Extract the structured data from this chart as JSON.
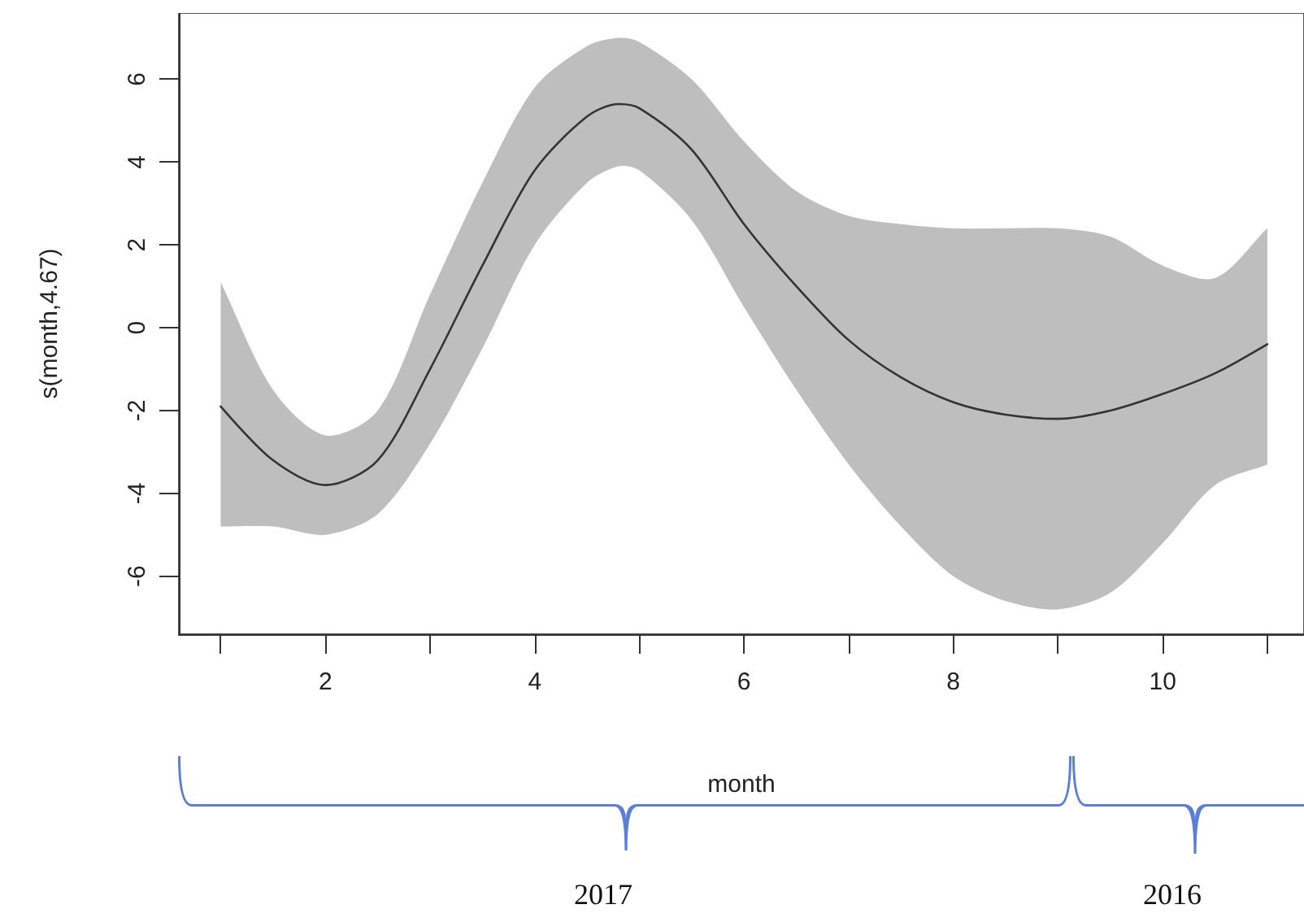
{
  "chart_data": {
    "type": "line",
    "xlabel": "month",
    "ylabel": "s(month,4.67)",
    "x": [
      1,
      1.5,
      2,
      2.5,
      3,
      3.5,
      4,
      4.5,
      4.8,
      5,
      5.5,
      6,
      6.5,
      7,
      7.5,
      8,
      8.5,
      9,
      9.5,
      10,
      10.5,
      11
    ],
    "series": [
      {
        "color": "#333333",
        "values": [
          -1.9,
          -3.2,
          -3.8,
          -3.2,
          -1.0,
          1.5,
          3.8,
          5.1,
          5.4,
          5.3,
          4.3,
          2.5,
          1.0,
          -0.3,
          -1.2,
          -1.8,
          -2.1,
          -2.2,
          -2.0,
          -1.6,
          -1.1,
          -0.4
        ],
        "lower": [
          -4.8,
          -4.8,
          -5.0,
          -4.5,
          -2.8,
          -0.5,
          2.0,
          3.5,
          3.9,
          3.8,
          2.6,
          0.5,
          -1.5,
          -3.3,
          -4.8,
          -6.0,
          -6.6,
          -6.8,
          -6.4,
          -5.2,
          -3.8,
          -3.3
        ],
        "upper": [
          1.1,
          -1.5,
          -2.6,
          -2.0,
          0.8,
          3.5,
          5.8,
          6.8,
          7.0,
          6.9,
          6.0,
          4.5,
          3.3,
          2.7,
          2.5,
          2.4,
          2.4,
          2.4,
          2.2,
          1.5,
          1.2,
          2.4
        ]
      }
    ],
    "xlim": [
      0.6,
      11.35
    ],
    "ylim": [
      -7.4,
      7.6
    ],
    "xticks": [
      {
        "value": 1,
        "label": null
      },
      2,
      {
        "value": 3,
        "label": null
      },
      4,
      {
        "value": 5,
        "label": null
      },
      6,
      {
        "value": 7,
        "label": null
      },
      8,
      {
        "value": 9,
        "label": null
      },
      10,
      {
        "value": 11,
        "label": null
      }
    ],
    "yticks": [
      -6,
      -4,
      -2,
      0,
      2,
      4,
      6
    ],
    "grid": false,
    "marker": "none",
    "line_style": "solid",
    "annotations": [
      "2017",
      "2016"
    ]
  }
}
